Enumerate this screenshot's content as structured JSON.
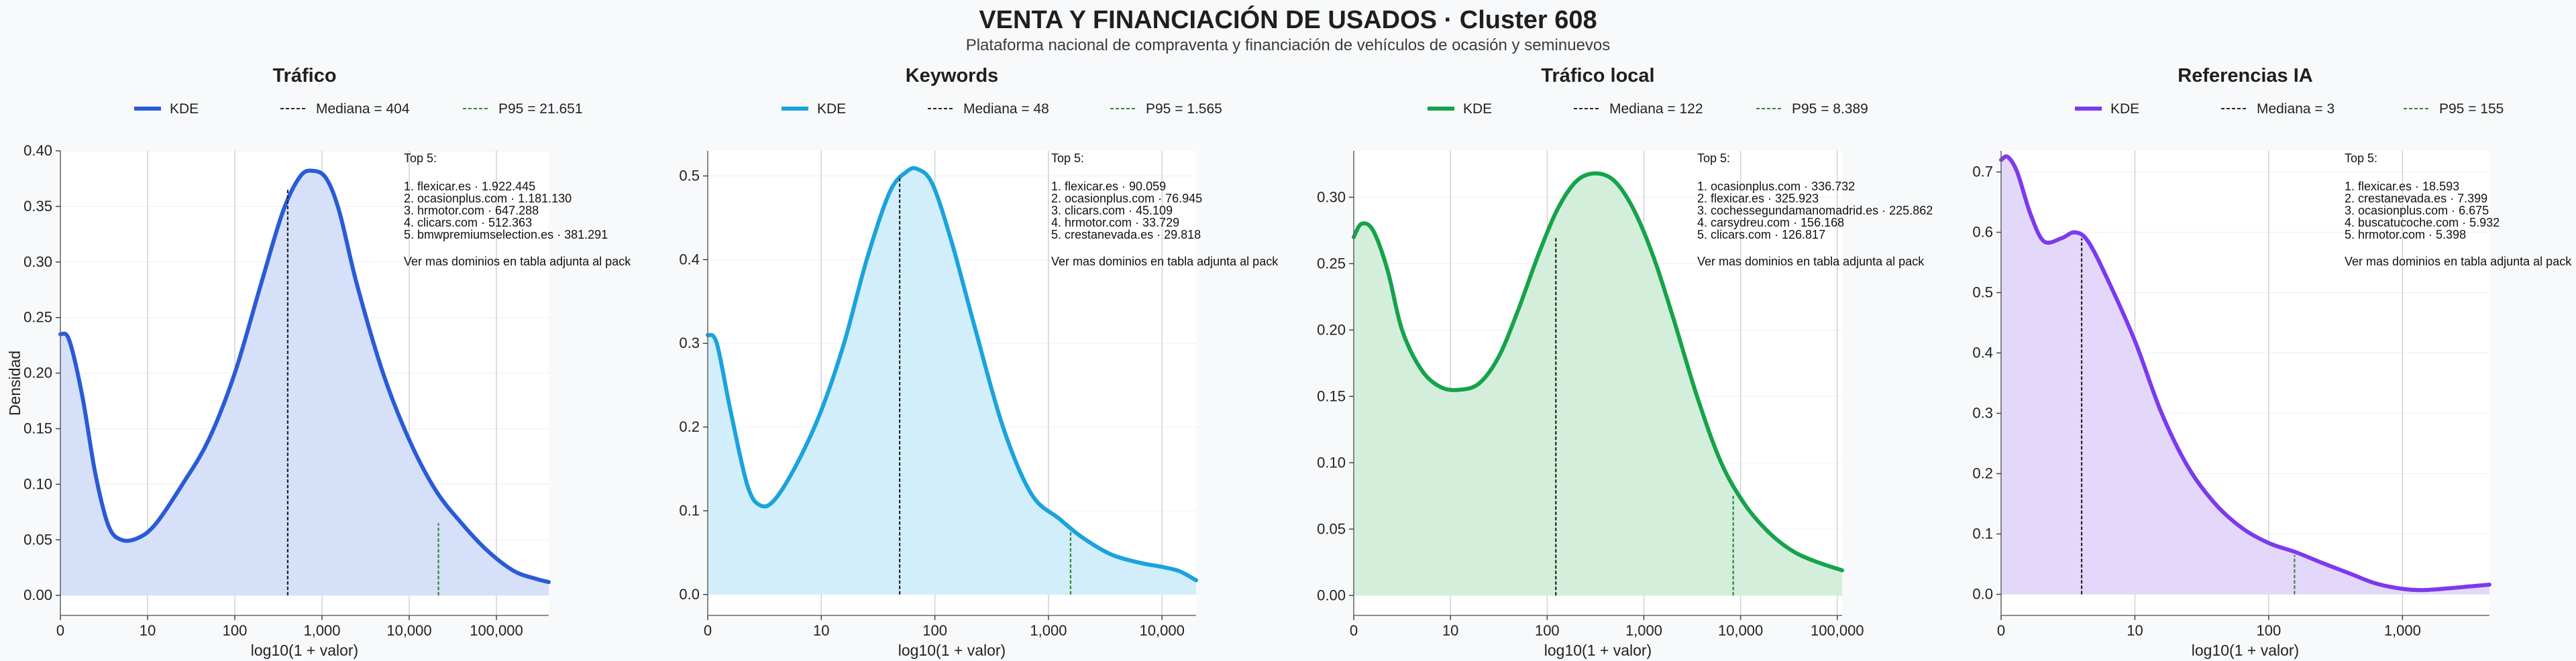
{
  "title": "VENTA Y FINANCIACIÓN DE USADOS · Cluster 608",
  "subtitle": "Plataforma nacional de compraventa y financiación de vehículos de ocasión y seminuevos",
  "shared": {
    "ylabel": "Densidad",
    "xlabel": "log10(1 + valor)",
    "top_header": "Top 5:",
    "more_note": "Ver mas dominios en tabla adjunta al pack",
    "legend_kde": "KDE",
    "median_color": "#222222",
    "p95_color": "#2e8b2e"
  },
  "chart_data": [
    {
      "type": "area",
      "title": "Tráfico",
      "xlabel": "log10(1 + valor)",
      "ylabel": "Densidad",
      "x_scale": "log10(1+x)",
      "xlim": [
        0,
        5.6
      ],
      "ylim": [
        -0.018,
        0.4
      ],
      "x_ticks": [
        {
          "v": 0,
          "label": "0"
        },
        {
          "v": 1,
          "label": "10"
        },
        {
          "v": 2,
          "label": "100"
        },
        {
          "v": 3,
          "label": "1,000"
        },
        {
          "v": 4,
          "label": "10,000"
        },
        {
          "v": 5,
          "label": "100,000"
        }
      ],
      "y_ticks": [
        {
          "v": 0,
          "label": "0.00"
        },
        {
          "v": 0.05,
          "label": "0.05"
        },
        {
          "v": 0.1,
          "label": "0.10"
        },
        {
          "v": 0.15,
          "label": "0.15"
        },
        {
          "v": 0.2,
          "label": "0.20"
        },
        {
          "v": 0.25,
          "label": "0.25"
        },
        {
          "v": 0.3,
          "label": "0.30"
        },
        {
          "v": 0.35,
          "label": "0.35"
        },
        {
          "v": 0.4,
          "label": "0.40"
        }
      ],
      "color": "#2a5bd7",
      "fill": "#d6e0f9",
      "series": [
        {
          "name": "KDE",
          "points": [
            [
              0,
              0.235
            ],
            [
              0.1,
              0.23
            ],
            [
              0.25,
              0.18
            ],
            [
              0.4,
              0.11
            ],
            [
              0.55,
              0.063
            ],
            [
              0.7,
              0.05
            ],
            [
              0.9,
              0.052
            ],
            [
              1.1,
              0.065
            ],
            [
              1.4,
              0.1
            ],
            [
              1.7,
              0.14
            ],
            [
              2.0,
              0.2
            ],
            [
              2.3,
              0.28
            ],
            [
              2.55,
              0.345
            ],
            [
              2.75,
              0.377
            ],
            [
              2.9,
              0.382
            ],
            [
              3.05,
              0.375
            ],
            [
              3.2,
              0.345
            ],
            [
              3.4,
              0.28
            ],
            [
              3.7,
              0.2
            ],
            [
              4.0,
              0.14
            ],
            [
              4.3,
              0.095
            ],
            [
              4.6,
              0.065
            ],
            [
              4.9,
              0.04
            ],
            [
              5.2,
              0.022
            ],
            [
              5.45,
              0.015
            ],
            [
              5.6,
              0.012
            ]
          ]
        }
      ],
      "median": {
        "label": "Mediana = 404",
        "x": 2.607,
        "y": 0.365
      },
      "p95": {
        "label": "P95 = 21.651",
        "x": 4.335,
        "y": 0.065
      },
      "top_items": [
        "1. flexicar.es · 1.922.445",
        "2. ocasionplus.com · 1.181.130",
        "3. hrmotor.com · 647.288",
        "4. clicars.com · 512.363",
        "5. bmwpremiumselection.es · 381.291"
      ]
    },
    {
      "type": "area",
      "title": "Keywords",
      "xlabel": "log10(1 + valor)",
      "x_scale": "log10(1+x)",
      "xlim": [
        0,
        4.3
      ],
      "ylim": [
        -0.025,
        0.53
      ],
      "x_ticks": [
        {
          "v": 0,
          "label": "0"
        },
        {
          "v": 1,
          "label": "10"
        },
        {
          "v": 2,
          "label": "100"
        },
        {
          "v": 3,
          "label": "1,000"
        },
        {
          "v": 4,
          "label": "10,000"
        }
      ],
      "y_ticks": [
        {
          "v": 0,
          "label": "0.0"
        },
        {
          "v": 0.1,
          "label": "0.1"
        },
        {
          "v": 0.2,
          "label": "0.2"
        },
        {
          "v": 0.3,
          "label": "0.3"
        },
        {
          "v": 0.4,
          "label": "0.4"
        },
        {
          "v": 0.5,
          "label": "0.5"
        }
      ],
      "color": "#1aa3dc",
      "fill": "#d2eefa",
      "series": [
        {
          "name": "KDE",
          "points": [
            [
              0,
              0.31
            ],
            [
              0.08,
              0.3
            ],
            [
              0.2,
              0.22
            ],
            [
              0.35,
              0.13
            ],
            [
              0.47,
              0.106
            ],
            [
              0.6,
              0.115
            ],
            [
              0.8,
              0.16
            ],
            [
              1.0,
              0.22
            ],
            [
              1.2,
              0.3
            ],
            [
              1.4,
              0.4
            ],
            [
              1.6,
              0.48
            ],
            [
              1.75,
              0.505
            ],
            [
              1.85,
              0.508
            ],
            [
              1.98,
              0.49
            ],
            [
              2.15,
              0.42
            ],
            [
              2.35,
              0.32
            ],
            [
              2.6,
              0.2
            ],
            [
              2.85,
              0.12
            ],
            [
              3.1,
              0.09
            ],
            [
              3.3,
              0.068
            ],
            [
              3.55,
              0.048
            ],
            [
              3.8,
              0.038
            ],
            [
              4.0,
              0.033
            ],
            [
              4.15,
              0.028
            ],
            [
              4.3,
              0.017
            ]
          ]
        }
      ],
      "median": {
        "label": "Mediana = 48",
        "x": 1.69,
        "y": 0.5
      },
      "p95": {
        "label": "P95 = 1.565",
        "x": 3.195,
        "y": 0.075
      },
      "top_items": [
        "1. flexicar.es · 90.059",
        "2. ocasionplus.com · 76.945",
        "3. clicars.com · 45.109",
        "4. hrmotor.com · 33.729",
        "5. crestanevada.es · 29.818"
      ]
    },
    {
      "type": "area",
      "title": "Tráfico local",
      "xlabel": "log10(1 + valor)",
      "x_scale": "log10(1+x)",
      "xlim": [
        0,
        5.05
      ],
      "ylim": [
        -0.015,
        0.335
      ],
      "x_ticks": [
        {
          "v": 0,
          "label": "0"
        },
        {
          "v": 1,
          "label": "10"
        },
        {
          "v": 2,
          "label": "100"
        },
        {
          "v": 3,
          "label": "1,000"
        },
        {
          "v": 4,
          "label": "10,000"
        },
        {
          "v": 5,
          "label": "100,000"
        }
      ],
      "y_ticks": [
        {
          "v": 0,
          "label": "0.00"
        },
        {
          "v": 0.05,
          "label": "0.05"
        },
        {
          "v": 0.1,
          "label": "0.10"
        },
        {
          "v": 0.15,
          "label": "0.15"
        },
        {
          "v": 0.2,
          "label": "0.20"
        },
        {
          "v": 0.25,
          "label": "0.25"
        },
        {
          "v": 0.3,
          "label": "0.30"
        }
      ],
      "color": "#16a34a",
      "fill": "#d3efdc",
      "series": [
        {
          "name": "KDE",
          "points": [
            [
              0,
              0.27
            ],
            [
              0.08,
              0.28
            ],
            [
              0.2,
              0.275
            ],
            [
              0.35,
              0.245
            ],
            [
              0.5,
              0.2
            ],
            [
              0.7,
              0.17
            ],
            [
              0.9,
              0.157
            ],
            [
              1.1,
              0.155
            ],
            [
              1.3,
              0.16
            ],
            [
              1.5,
              0.18
            ],
            [
              1.7,
              0.215
            ],
            [
              1.9,
              0.255
            ],
            [
              2.1,
              0.29
            ],
            [
              2.3,
              0.312
            ],
            [
              2.5,
              0.318
            ],
            [
              2.7,
              0.312
            ],
            [
              2.9,
              0.29
            ],
            [
              3.1,
              0.255
            ],
            [
              3.3,
              0.21
            ],
            [
              3.55,
              0.15
            ],
            [
              3.8,
              0.1
            ],
            [
              4.05,
              0.068
            ],
            [
              4.3,
              0.047
            ],
            [
              4.55,
              0.033
            ],
            [
              4.8,
              0.025
            ],
            [
              5.05,
              0.019
            ]
          ]
        }
      ],
      "median": {
        "label": "Mediana = 122",
        "x": 2.09,
        "y": 0.27
      },
      "p95": {
        "label": "P95 = 8.389",
        "x": 3.924,
        "y": 0.075
      },
      "top_items": [
        "1. ocasionplus.com · 336.732",
        "2. flexicar.es · 325.923",
        "3. cochessegundamanomadrid.es · 225.862",
        "4. carsydreu.com · 156.168",
        "5. clicars.com · 126.817"
      ]
    },
    {
      "type": "area",
      "title": "Referencias IA",
      "xlabel": "log10(1 + valor)",
      "x_scale": "log10(1+x)",
      "xlim": [
        0,
        3.65
      ],
      "ylim": [
        -0.035,
        0.735
      ],
      "x_ticks": [
        {
          "v": 0,
          "label": "0"
        },
        {
          "v": 1,
          "label": "10"
        },
        {
          "v": 2,
          "label": "100"
        },
        {
          "v": 3,
          "label": "1,000"
        }
      ],
      "y_ticks": [
        {
          "v": 0,
          "label": "0.0"
        },
        {
          "v": 0.1,
          "label": "0.1"
        },
        {
          "v": 0.2,
          "label": "0.2"
        },
        {
          "v": 0.3,
          "label": "0.3"
        },
        {
          "v": 0.4,
          "label": "0.4"
        },
        {
          "v": 0.5,
          "label": "0.5"
        },
        {
          "v": 0.6,
          "label": "0.6"
        },
        {
          "v": 0.7,
          "label": "0.7"
        }
      ],
      "color": "#7c3aed",
      "fill": "#e4d8fa",
      "series": [
        {
          "name": "KDE",
          "points": [
            [
              0,
              0.72
            ],
            [
              0.05,
              0.725
            ],
            [
              0.12,
              0.7
            ],
            [
              0.22,
              0.63
            ],
            [
              0.32,
              0.585
            ],
            [
              0.45,
              0.59
            ],
            [
              0.55,
              0.6
            ],
            [
              0.65,
              0.585
            ],
            [
              0.8,
              0.52
            ],
            [
              1.0,
              0.42
            ],
            [
              1.2,
              0.3
            ],
            [
              1.4,
              0.21
            ],
            [
              1.6,
              0.15
            ],
            [
              1.8,
              0.11
            ],
            [
              2.0,
              0.085
            ],
            [
              2.2,
              0.07
            ],
            [
              2.4,
              0.052
            ],
            [
              2.6,
              0.035
            ],
            [
              2.8,
              0.018
            ],
            [
              3.0,
              0.009
            ],
            [
              3.15,
              0.007
            ],
            [
              3.35,
              0.01
            ],
            [
              3.5,
              0.013
            ],
            [
              3.65,
              0.016
            ]
          ]
        }
      ],
      "median": {
        "label": "Mediana = 3",
        "x": 0.602,
        "y": 0.59
      },
      "p95": {
        "label": "P95 = 155",
        "x": 2.193,
        "y": 0.065
      },
      "top_items": [
        "1. flexicar.es · 18.593",
        "2. crestanevada.es · 7.399",
        "3. ocasionplus.com · 6.675",
        "4. buscatucoche.com · 5.932",
        "5. hrmotor.com · 5.398"
      ]
    }
  ]
}
